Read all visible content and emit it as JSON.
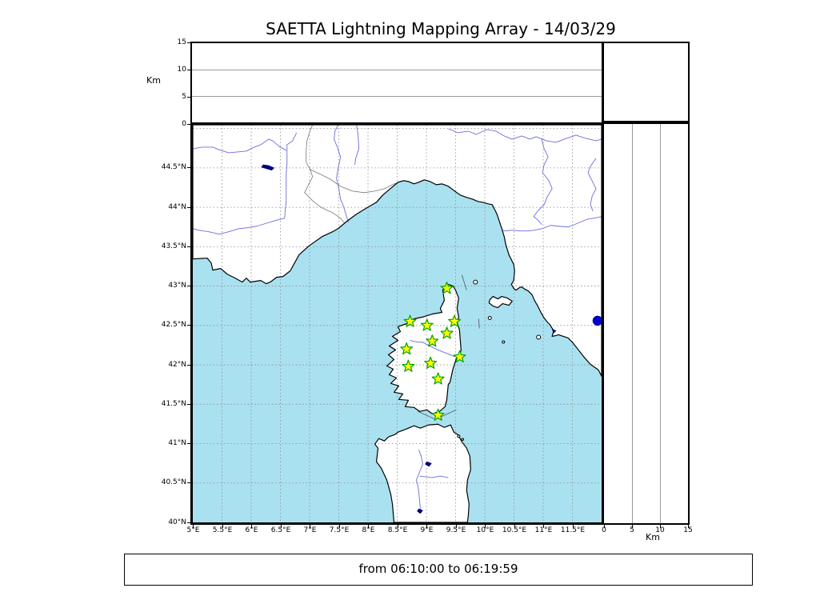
{
  "title": "SAETTA Lightning Mapping Array - 14/03/29",
  "footer": {
    "text": "from 06:10:00 to 06:19:59"
  },
  "altitude_axis": {
    "label": "Km",
    "ticks": [
      0,
      5,
      10,
      15
    ],
    "max": 15,
    "gridline_values": [
      5,
      10
    ]
  },
  "map": {
    "lon_min": 5,
    "lon_max": 12,
    "lat_min": 40,
    "lat_max": 45.05,
    "lon_ticks": [
      {
        "value": 5,
        "label": "5°E"
      },
      {
        "value": 5.5,
        "label": "5.5°E"
      },
      {
        "value": 6,
        "label": "6°E"
      },
      {
        "value": 6.5,
        "label": "6.5°E"
      },
      {
        "value": 7,
        "label": "7°E"
      },
      {
        "value": 7.5,
        "label": "7.5°E"
      },
      {
        "value": 8,
        "label": "8°E"
      },
      {
        "value": 8.5,
        "label": "8.5°E"
      },
      {
        "value": 9,
        "label": "9°E"
      },
      {
        "value": 9.5,
        "label": "9.5°E"
      },
      {
        "value": 10,
        "label": "10°E"
      },
      {
        "value": 10.5,
        "label": "10.5°E"
      },
      {
        "value": 11,
        "label": "11°E"
      },
      {
        "value": 11.5,
        "label": "11.5°E"
      }
    ],
    "lat_ticks": [
      {
        "value": 40,
        "label": "40°N"
      },
      {
        "value": 40.5,
        "label": "40.5°N"
      },
      {
        "value": 41,
        "label": "41°N"
      },
      {
        "value": 41.5,
        "label": "41.5°N"
      },
      {
        "value": 42,
        "label": "42°N"
      },
      {
        "value": 42.5,
        "label": "42.5°N"
      },
      {
        "value": 43,
        "label": "43°N"
      },
      {
        "value": 43.5,
        "label": "43.5°N"
      },
      {
        "value": 44,
        "label": "44°N"
      },
      {
        "value": 44.5,
        "label": "44.5°N"
      }
    ],
    "grid_lons": [
      5.5,
      6,
      6.5,
      7,
      7.5,
      8,
      8.5,
      9,
      9.5,
      10,
      10.5,
      11,
      11.5
    ],
    "grid_lats": [
      40.5,
      41,
      41.5,
      42,
      42.5,
      43,
      43.5,
      44,
      44.5,
      45
    ],
    "stations": [
      {
        "lon": 9.35,
        "lat": 42.97
      },
      {
        "lon": 8.72,
        "lat": 42.55
      },
      {
        "lon": 9.01,
        "lat": 42.5
      },
      {
        "lon": 9.48,
        "lat": 42.55
      },
      {
        "lon": 9.35,
        "lat": 42.4
      },
      {
        "lon": 9.1,
        "lat": 42.3
      },
      {
        "lon": 8.66,
        "lat": 42.2
      },
      {
        "lon": 9.57,
        "lat": 42.1
      },
      {
        "lon": 9.07,
        "lat": 42.02
      },
      {
        "lon": 8.69,
        "lat": 41.98
      },
      {
        "lon": 9.2,
        "lat": 41.82
      },
      {
        "lon": 9.2,
        "lat": 41.36
      }
    ],
    "event_dot": {
      "lon": 11.93,
      "lat": 42.56
    }
  },
  "colors": {
    "sea": "#aae1f0",
    "land": "#ffffff",
    "coastline": "#000000",
    "grid": "#8a8a8a",
    "river": "#6c6cdc",
    "border": "#777777",
    "star_fill": "#ffff00",
    "star_stroke": "#00a300",
    "event_dot": "#0000cc",
    "lake": "#000080",
    "segment": "#444444"
  },
  "geometry": {
    "land": [
      "M0,168 L18,167 L23,173 L25,182 L35,180 L43,187 L53,192 L62,197 L67,192 L72,197 L85,195 L92,199 L97,197 L105,191 L113,190 L122,183 L133,163 L145,152 L162,140 L175,134 L182,130 L194,120 L205,112 L218,104 L230,97 L238,88 L245,82 L257,72 L264,70 L270,71 L277,74 L283,72 L290,69 L297,71 L305,75 L312,74 L320,77 L328,83 L335,88 L343,91 L350,93 L357,96 L363,97 L370,99 L375,100 L378,106 L381,112 L384,121 L387,130 L390,140 L392,150 L396,163 L402,175 L403,183 L402,195 L399,200 L402,205 L405,207 L409,204 L412,203 L416,206 L420,208 L425,213 L428,220 L432,227 L436,235 L440,242 L444,247 L447,250 L452,258 L450,265 L455,264 L458,263 L464,265 L470,267 L476,273 L483,282 L490,291 L498,300 L508,307 L512,315 L512,0 L0,0 Z",
      "M320,200 L313,207 L315,220 L310,230 L312,235 L300,237 L287,241 L277,243 L268,249 L257,253 L260,259 L250,265 L257,270 L246,277 L254,282 L245,288 L252,294 L243,302 L251,306 L246,313 L255,317 L248,324 L258,327 L252,335 L263,337 L258,344 L270,345 L266,353 L277,354 L284,359 L293,357 L300,362 L309,359 L316,353 L318,345 L320,325 L322,323 L326,305 L330,293 L334,289 L336,282 L335,270 L334,257 L331,247 L333,241 L331,230 L333,217 L329,207 L326,202 Z",
      "M252,498 L250,475 L248,463 L243,445 L236,430 L230,422 L232,405 L228,400 L233,393 L240,396 L245,391 L253,388 L257,385 L265,382 L277,377 L285,380 L295,376 L307,375 L315,379 L323,376 L327,385 L332,388 L337,397 L343,405 L347,415 L348,432 L344,445 L343,458 L346,475 L345,490 L344,498 Z",
      "M371,223 L372,219 L376,215 L382,218 L387,215 L394,217 L400,221 L396,226 L388,224 L382,229 L376,227 Z"
    ],
    "islands": [
      [
        354,
        197,
        2.5
      ],
      [
        372,
        242,
        2
      ],
      [
        389,
        272,
        1.5
      ],
      [
        433,
        266,
        2.5
      ],
      [
        333,
        390,
        1.5
      ],
      [
        338,
        394,
        1.2
      ]
    ],
    "rivers": [
      "M130,10 L125,20 L118,25 L118,33 L118,50 L117,60 L117,77 L117,95 L116,105 L115,117 L103,120 L90,124 L80,127 L68,129 L58,130 L45,134 L33,137 L20,134 L7,132 L0,130",
      "M0,30 L12,28 L25,28 L35,32 L45,35 L56,34 L67,33 L77,28 L85,25 L95,18 L100,20 L108,27 L117,32",
      "M182,0 L178,8 L177,18 L181,28 L185,40 L182,55 L180,67 L183,80 L185,93 L189,103 L192,113 L195,122",
      "M205,0 L207,12 L208,30 L204,42 L203,50",
      "M320,5 L332,10 L345,8 L355,12 L368,6 L380,8 L390,14 L400,18 L412,14 L422,18 L430,15 L443,20 L455,22 L468,17 L480,13 L492,17 L505,20 L512,18",
      "M437,18 L440,30 L445,40 L440,50 L438,60 L446,70 L450,80 L444,90 L440,100 L432,108 L427,115 L433,120 L437,125",
      "M512,115 L502,117 L495,118 L485,122 L478,125 L470,128 L458,127 L448,126 L438,130 L428,132 L420,133 L410,133 L400,132 L392,133 L387,132",
      "M505,42 L498,52 L495,60 L500,70 L505,80 L500,90 L498,100 L501,108",
      "M272,270 L280,272 L287,272 L295,276 L305,281 L312,284 L320,287 L327,290 L333,291",
      "M283,407 L286,415 L288,425 L284,435 L280,445 L282,452 L283,460 L284,470 L285,482",
      "M284,440 L292,441 L300,442 L310,440 L320,442"
    ],
    "borders": [
      "M150,0 L146,10 L143,20 L142,32 L142,47 L147,56 L150,65 L145,75 L140,85 L150,95 L160,103 L168,107 L175,110 L185,117 L190,123",
      "M147,56 L160,62 L172,68 L185,77 L200,83 L215,85 L228,83 L240,80 L252,74 L265,70"
    ],
    "lakes": [
      "M88,50 L95,51 L102,54 L99,57 L92,55 L86,53 Z",
      "M293,422 L299,424 L296,428 L291,425 Z",
      "M283,481 L288,483 L285,487 L281,484 Z",
      "M450,256 L455,258 L452,261 Z"
    ],
    "segments": [
      "M282,359 L302,368",
      "M308,367 L330,357",
      "M337,188 L343,207",
      "M358,243 L359,255"
    ]
  }
}
